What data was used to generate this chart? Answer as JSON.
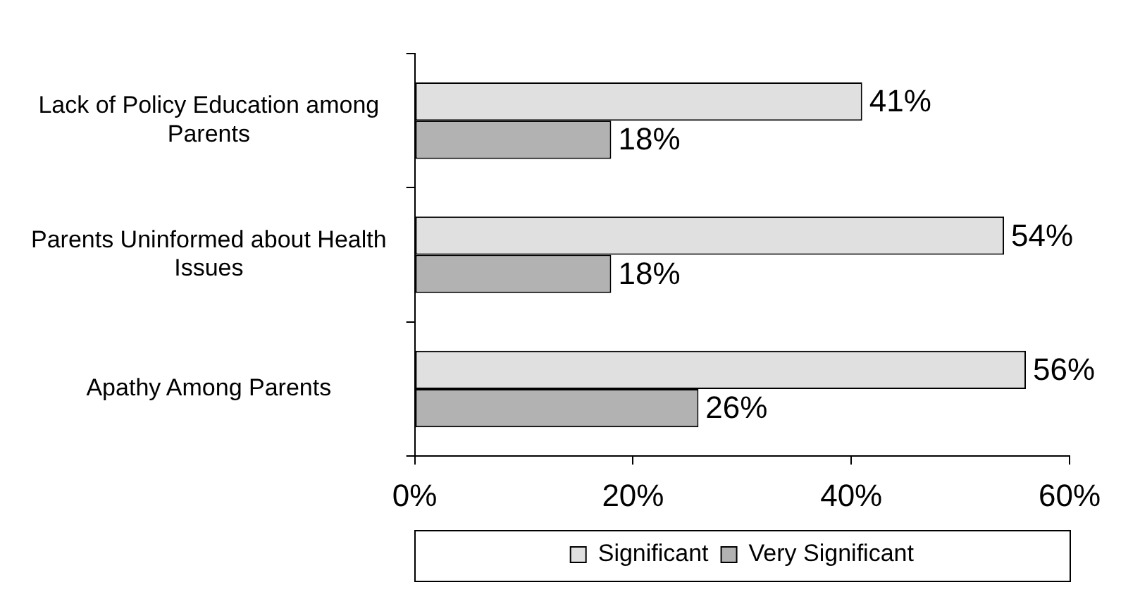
{
  "chart_data": {
    "type": "bar",
    "orientation": "horizontal",
    "categories": [
      "Lack of Policy Education among Parents",
      "Parents Uninformed about Health Issues",
      "Apathy Among Parents"
    ],
    "series": [
      {
        "name": "Very Significant",
        "color": "#b2b2b2",
        "values": [
          18,
          18,
          26
        ],
        "value_labels": [
          "18%",
          "18%",
          "26%"
        ]
      },
      {
        "name": "Significant",
        "color": "#e0e0e0",
        "values": [
          41,
          54,
          56
        ],
        "value_labels": [
          "41%",
          "54%",
          "56%"
        ]
      }
    ],
    "xlim": [
      0,
      60
    ],
    "xticks": [
      {
        "value": 0,
        "label": "0%"
      },
      {
        "value": 20,
        "label": "20%"
      },
      {
        "value": 40,
        "label": "40%"
      },
      {
        "value": 60,
        "label": "60%"
      }
    ],
    "grid": false,
    "legend": "bottom"
  }
}
